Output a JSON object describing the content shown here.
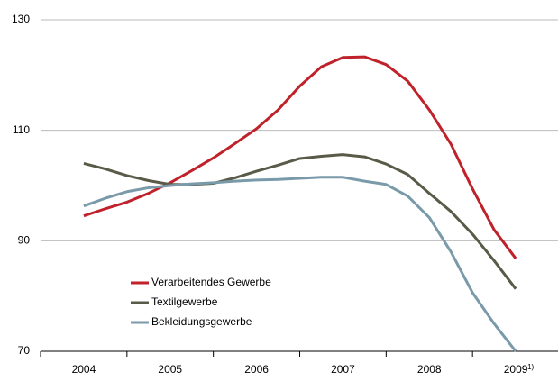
{
  "chart_data": {
    "type": "line",
    "x": [
      2004,
      2004.25,
      2004.5,
      2004.75,
      2005,
      2005.25,
      2005.5,
      2005.75,
      2006,
      2006.25,
      2006.5,
      2006.75,
      2007,
      2007.25,
      2007.5,
      2007.75,
      2008,
      2008.25,
      2008.5,
      2008.75,
      2009
    ],
    "series": [
      {
        "name": "Verarbeitendes Gewerbe",
        "color": "#c0222b",
        "values": [
          94.5,
          95.8,
          97,
          98.6,
          100.5,
          102.7,
          105,
          107.6,
          110.3,
          113.7,
          118,
          121.5,
          123.2,
          123.3,
          121.9,
          118.9,
          113.7,
          107.5,
          99.4,
          92,
          86.8
        ]
      },
      {
        "name": "Textilgewerbe",
        "color": "#5a5a48",
        "values": [
          104,
          103,
          101.8,
          100.9,
          100.2,
          100.2,
          100.4,
          101.4,
          102.6,
          103.7,
          104.9,
          105.3,
          105.6,
          105.2,
          103.9,
          102,
          98.6,
          95.3,
          91.2,
          86.4,
          81.3
        ]
      },
      {
        "name": "Bekleidungsgewerbe",
        "color": "#7a9aaa",
        "values": [
          96.3,
          97.7,
          98.9,
          99.6,
          100,
          100.3,
          100.5,
          100.8,
          101,
          101.1,
          101.3,
          101.5,
          101.5,
          100.8,
          100.2,
          98.1,
          94.2,
          88,
          80.6,
          75,
          70
        ]
      }
    ],
    "xlim": [
      2003.5,
      2009.5
    ],
    "xticks": [
      2004,
      2005,
      2006,
      2007,
      2008,
      2009
    ],
    "ylim": [
      70,
      130
    ],
    "yticks": [
      70,
      90,
      110,
      130
    ],
    "grid": true,
    "footnote_mark": "1)"
  }
}
